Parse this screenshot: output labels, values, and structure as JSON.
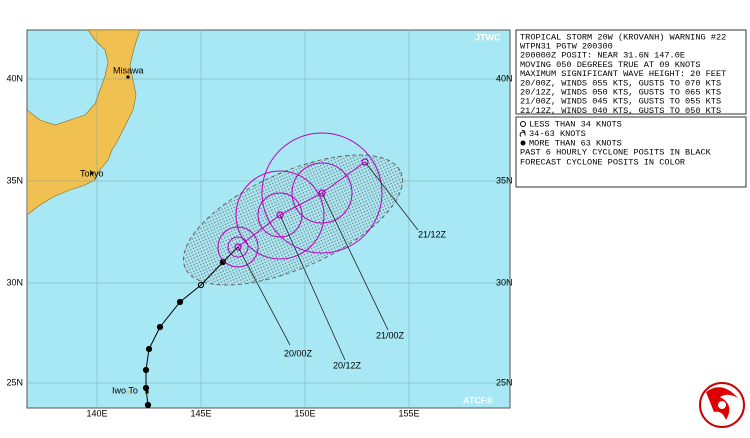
{
  "map": {
    "source": "JTWC",
    "credit": "ATCF®",
    "lat_labels": [
      "40N",
      "35N",
      "30N",
      "25N"
    ],
    "lon_labels": [
      "140E",
      "145E",
      "150E",
      "155E"
    ],
    "places": [
      "Misawa",
      "Tokyo",
      "Iwo To"
    ],
    "forecast_labels": [
      "20/00Z",
      "20/12Z",
      "21/00Z",
      "21/12Z"
    ]
  },
  "warning": {
    "lines": [
      "TROPICAL STORM 20W (KROVANH) WARNING #22",
      "WTPN31 PGTW 200300",
      "200000Z POSIT: NEAR 31.6N 147.0E",
      "MOVING 050 DEGREES TRUE AT 09 KNOTS",
      "MAXIMUM SIGNIFICANT WAVE HEIGHT: 20 FEET",
      "20/00Z, WINDS 055 KTS, GUSTS TO 070 KTS",
      "20/12Z, WINDS 050 KTS, GUSTS TO 065 KTS",
      "21/00Z, WINDS 045 KTS, GUSTS TO 055 KTS",
      "21/12Z, WINDS 040 KTS, GUSTS TO 050 KTS"
    ]
  },
  "legend": {
    "items": [
      "LESS THAN 34 KNOTS",
      "34-63 KNOTS",
      "MORE THAN 63 KNOTS"
    ],
    "notes": [
      "PAST 6 HOURLY CYCLONE POSITS IN BLACK",
      "FORECAST CYCLONE POSITS IN COLOR"
    ]
  }
}
